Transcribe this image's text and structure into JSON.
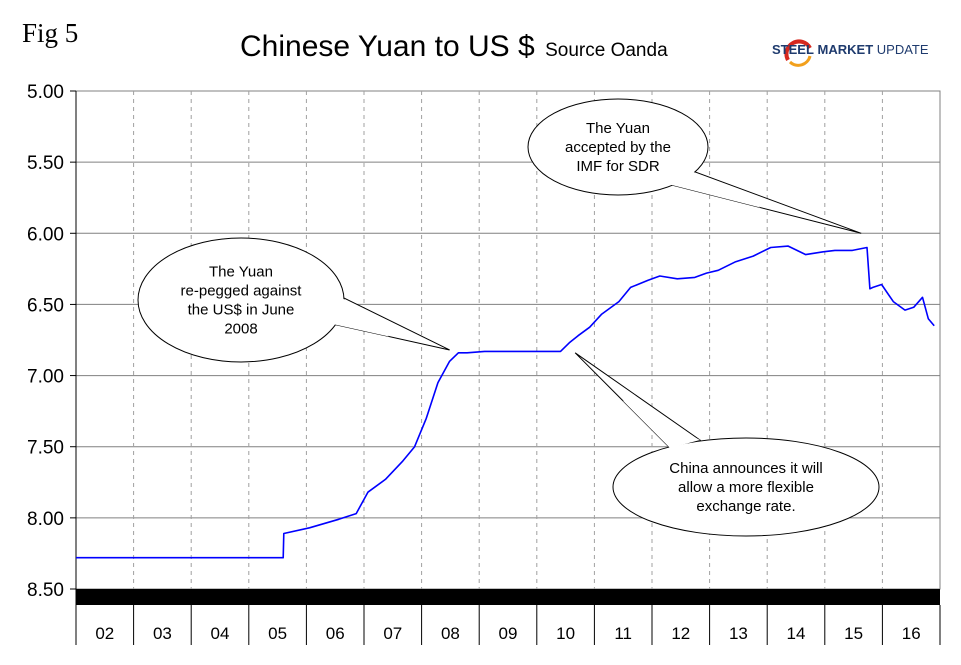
{
  "fig_label": "Fig 5",
  "logo": {
    "steel": "STEEL",
    "market": "MARKET",
    "update": "UPDATE"
  },
  "chart_data": {
    "type": "line",
    "title": "Chinese Yuan to US $",
    "subtitle": "Source Oanda",
    "x_tick_labels": [
      "02",
      "03",
      "04",
      "05",
      "06",
      "07",
      "08",
      "09",
      "10",
      "11",
      "12",
      "13",
      "14",
      "15",
      "16"
    ],
    "y_tick_labels": [
      "5.00",
      "5.50",
      "6.00",
      "6.50",
      "7.00",
      "7.50",
      "8.00",
      "8.50"
    ],
    "ylim": [
      5.0,
      8.5
    ],
    "y_inverted": true,
    "xlim": [
      2002.0,
      2016.8
    ],
    "grid": {
      "vertical": "dashed",
      "horizontal": "solid"
    },
    "series": [
      {
        "color": "#0000ff",
        "x": [
          2002.0,
          2004.0,
          2004.5,
          2005.3,
          2005.55,
          2005.56,
          2006.0,
          2006.5,
          2006.8,
          2007.0,
          2007.3,
          2007.6,
          2007.8,
          2008.0,
          2008.2,
          2008.4,
          2008.55,
          2008.7,
          2009.0,
          2009.5,
          2010.0,
          2010.3,
          2010.45,
          2010.6,
          2010.8,
          2011.0,
          2011.3,
          2011.5,
          2011.8,
          2012.0,
          2012.3,
          2012.6,
          2012.8,
          2013.0,
          2013.3,
          2013.6,
          2013.9,
          2014.2,
          2014.5,
          2014.8,
          2015.0,
          2015.3,
          2015.55,
          2015.6,
          2015.65,
          2015.8,
          2016.0,
          2016.2,
          2016.35,
          2016.5,
          2016.6,
          2016.7
        ],
        "values": [
          8.28,
          8.28,
          8.28,
          8.28,
          8.28,
          8.11,
          8.07,
          8.01,
          7.97,
          7.82,
          7.73,
          7.6,
          7.5,
          7.3,
          7.05,
          6.9,
          6.84,
          6.84,
          6.83,
          6.83,
          6.83,
          6.83,
          6.77,
          6.72,
          6.66,
          6.57,
          6.48,
          6.38,
          6.33,
          6.3,
          6.32,
          6.31,
          6.28,
          6.26,
          6.2,
          6.16,
          6.1,
          6.09,
          6.15,
          6.13,
          6.12,
          6.12,
          6.1,
          6.39,
          6.38,
          6.36,
          6.48,
          6.54,
          6.52,
          6.45,
          6.6,
          6.65
        ]
      }
    ],
    "annotations": [
      {
        "id": "imf",
        "lines": [
          "The Yuan",
          "accepted by the",
          "IMF for SDR"
        ],
        "target_x": 2015.45,
        "target_y": 6.0
      },
      {
        "id": "repeg",
        "lines": [
          "The Yuan",
          "re-pegged against",
          "the US$ in June",
          "2008"
        ],
        "target_x": 2008.4,
        "target_y": 6.82
      },
      {
        "id": "flex",
        "lines": [
          "China announces it will",
          "allow a more flexible",
          "exchange rate."
        ],
        "target_x": 2010.55,
        "target_y": 6.84
      }
    ]
  }
}
